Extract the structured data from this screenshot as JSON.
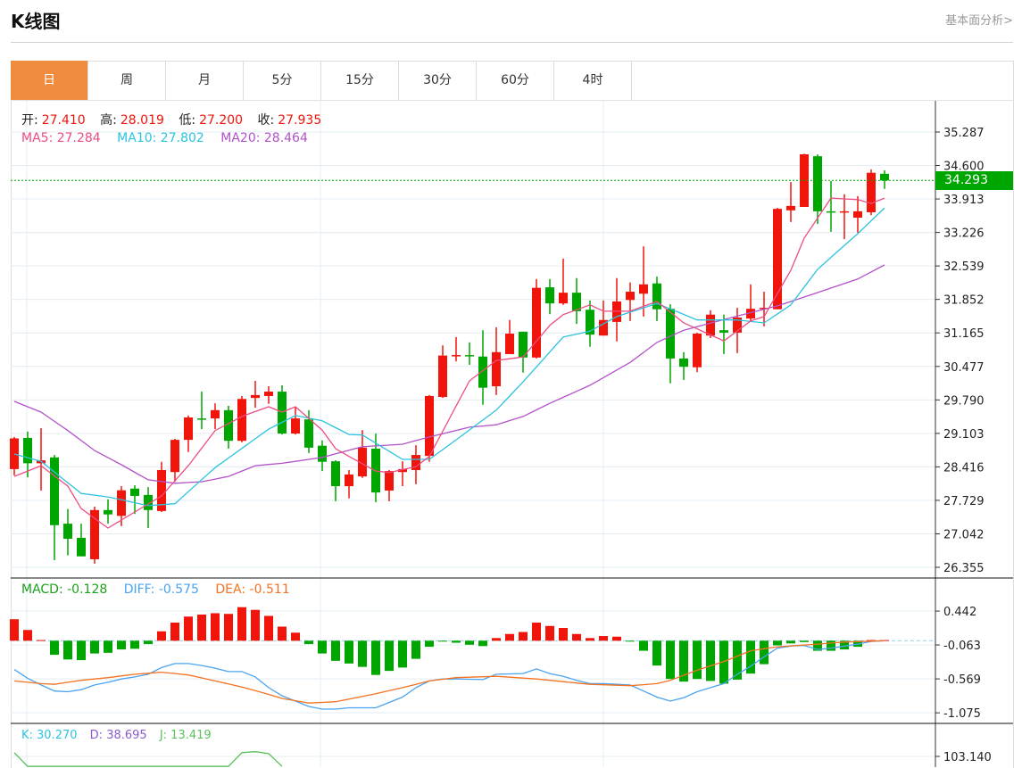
{
  "header": {
    "title": "K线图",
    "fundamental_link": "基本面分析>"
  },
  "tabs": [
    {
      "label": "日",
      "active": true
    },
    {
      "label": "周"
    },
    {
      "label": "月"
    },
    {
      "label": "5分"
    },
    {
      "label": "15分"
    },
    {
      "label": "30分"
    },
    {
      "label": "60分"
    },
    {
      "label": "4时"
    }
  ],
  "ohlc_legend": {
    "open_label": "开:",
    "open": "27.410",
    "high_label": "高:",
    "high": "28.019",
    "low_label": "低:",
    "low": "27.200",
    "close_label": "收:",
    "close": "27.935"
  },
  "ma_legend": {
    "ma5": "MA5: 27.284",
    "ma10": "MA10: 27.802",
    "ma20": "MA20: 28.464"
  },
  "macd_legend": {
    "macd": "MACD: -0.128",
    "diff": "DIFF: -0.575",
    "dea": "DEA: -0.511"
  },
  "kdj_legend": {
    "k": "K: 30.270",
    "d": "D: 38.695",
    "j": "J: 13.419"
  },
  "last_price": "34.293",
  "colors": {
    "up": "#f0140a",
    "down": "#00a600",
    "ma5": "#ec4d84",
    "ma10": "#2cc3df",
    "ma20": "#b252c9",
    "diff": "#4aa3f0",
    "dea": "#f27222",
    "k": "#2cc3df",
    "d": "#8a5cd0",
    "j": "#5cbf5c",
    "active_tab": "#f08c40"
  },
  "chart_data": [
    {
      "type": "candlestick",
      "title": "K线图",
      "y_ticks": [
        "35.287",
        "34.600",
        "33.913",
        "33.226",
        "32.539",
        "31.852",
        "31.165",
        "30.477",
        "29.790",
        "29.103",
        "28.416",
        "27.729",
        "27.042",
        "26.355"
      ],
      "ylim": [
        26.355,
        35.287
      ],
      "grid": true,
      "candles_ohlc_note": "each item = [open, close, high, low]",
      "candles": [
        [
          28.37,
          29.0,
          29.03,
          28.24
        ],
        [
          29.01,
          28.49,
          29.14,
          28.2
        ],
        [
          28.49,
          28.55,
          29.21,
          27.93
        ],
        [
          28.61,
          27.22,
          28.66,
          26.5
        ],
        [
          27.25,
          26.94,
          27.55,
          26.6
        ],
        [
          26.96,
          26.58,
          27.25,
          26.58
        ],
        [
          26.52,
          27.53,
          27.6,
          26.43
        ],
        [
          27.53,
          27.44,
          27.75,
          27.25
        ],
        [
          27.41,
          27.935,
          28.019,
          27.2
        ],
        [
          27.97,
          27.82,
          28.04,
          27.45
        ],
        [
          27.84,
          27.53,
          28.0,
          27.16
        ],
        [
          27.51,
          28.35,
          28.52,
          27.49
        ],
        [
          28.31,
          28.97,
          28.99,
          28.11
        ],
        [
          28.97,
          29.43,
          29.47,
          28.72
        ],
        [
          29.41,
          29.4,
          29.96,
          29.19
        ],
        [
          29.41,
          29.58,
          29.72,
          29.19
        ],
        [
          29.58,
          28.95,
          29.67,
          28.79
        ],
        [
          28.95,
          29.81,
          29.87,
          28.92
        ],
        [
          29.83,
          29.89,
          30.18,
          29.63
        ],
        [
          29.87,
          29.96,
          30.07,
          29.71
        ],
        [
          29.96,
          29.1,
          30.09,
          29.08
        ],
        [
          29.1,
          29.41,
          29.65,
          29.08
        ],
        [
          29.39,
          28.81,
          29.58,
          28.7
        ],
        [
          28.85,
          28.52,
          28.96,
          28.33
        ],
        [
          28.53,
          28.02,
          28.55,
          27.71
        ],
        [
          28.02,
          28.26,
          28.35,
          27.77
        ],
        [
          28.22,
          28.81,
          29.17,
          28.19
        ],
        [
          28.79,
          27.89,
          29.1,
          27.69
        ],
        [
          27.93,
          28.33,
          28.35,
          27.71
        ],
        [
          28.31,
          28.37,
          28.53,
          28.02
        ],
        [
          28.35,
          28.66,
          28.86,
          28.06
        ],
        [
          28.64,
          29.87,
          29.89,
          28.52
        ],
        [
          29.85,
          30.7,
          30.91,
          29.83
        ],
        [
          30.7,
          30.71,
          31.08,
          30.58
        ],
        [
          30.71,
          30.7,
          30.97,
          30.51
        ],
        [
          30.68,
          30.04,
          31.22,
          29.69
        ],
        [
          30.07,
          30.77,
          31.28,
          29.89
        ],
        [
          30.73,
          31.15,
          31.43,
          30.73
        ],
        [
          31.19,
          30.66,
          31.19,
          30.35
        ],
        [
          30.66,
          32.09,
          32.27,
          30.64
        ],
        [
          32.1,
          31.77,
          32.27,
          31.55
        ],
        [
          31.77,
          31.99,
          32.69,
          31.74
        ],
        [
          31.99,
          31.61,
          32.29,
          31.35
        ],
        [
          31.64,
          31.13,
          31.83,
          30.88
        ],
        [
          31.11,
          31.43,
          31.83,
          31.11
        ],
        [
          31.39,
          31.81,
          32.29,
          30.99
        ],
        [
          31.84,
          32.01,
          32.2,
          31.41
        ],
        [
          31.97,
          32.16,
          32.94,
          31.5
        ],
        [
          32.18,
          31.65,
          32.32,
          31.41
        ],
        [
          31.66,
          30.64,
          31.75,
          30.13
        ],
        [
          30.64,
          30.47,
          30.77,
          30.2
        ],
        [
          30.46,
          31.15,
          31.17,
          30.36
        ],
        [
          31.11,
          31.54,
          31.63,
          31.06
        ],
        [
          31.22,
          31.17,
          31.54,
          30.73
        ],
        [
          31.17,
          31.48,
          31.68,
          30.75
        ],
        [
          31.46,
          31.66,
          32.16,
          31.41
        ],
        [
          31.66,
          31.68,
          32.01,
          31.3
        ],
        [
          31.65,
          33.71,
          33.73,
          31.65
        ],
        [
          33.68,
          33.77,
          34.26,
          33.44
        ],
        [
          33.75,
          34.83,
          34.84,
          33.75
        ],
        [
          34.79,
          33.66,
          34.83,
          33.4
        ],
        [
          33.66,
          33.64,
          34.28,
          33.24
        ],
        [
          33.64,
          33.66,
          34.01,
          33.09
        ],
        [
          33.53,
          33.66,
          33.97,
          33.22
        ],
        [
          33.64,
          34.45,
          34.52,
          33.58
        ],
        [
          34.43,
          34.293,
          34.5,
          34.12
        ]
      ],
      "ma5": [
        [
          0,
          28.22
        ],
        [
          2,
          28.44
        ],
        [
          4,
          28.02
        ],
        [
          5,
          27.56
        ],
        [
          7,
          27.16
        ],
        [
          9,
          27.49
        ],
        [
          11,
          27.82
        ],
        [
          13,
          28.44
        ],
        [
          15,
          29.16
        ],
        [
          17,
          29.45
        ],
        [
          19,
          29.65
        ],
        [
          20,
          29.54
        ],
        [
          21,
          29.65
        ],
        [
          23,
          29.17
        ],
        [
          24,
          28.79
        ],
        [
          25,
          28.63
        ],
        [
          27,
          28.33
        ],
        [
          28,
          28.3
        ],
        [
          30,
          28.42
        ],
        [
          31,
          28.63
        ],
        [
          34,
          30.18
        ],
        [
          36,
          30.6
        ],
        [
          38,
          30.67
        ],
        [
          40,
          31.32
        ],
        [
          41,
          31.54
        ],
        [
          43,
          31.74
        ],
        [
          44,
          31.61
        ],
        [
          46,
          31.61
        ],
        [
          48,
          31.81
        ],
        [
          50,
          31.37
        ],
        [
          53,
          31.0
        ],
        [
          55,
          31.41
        ],
        [
          56,
          31.5
        ],
        [
          58,
          32.45
        ],
        [
          59,
          33.11
        ],
        [
          61,
          33.93
        ],
        [
          63,
          33.9
        ],
        [
          64,
          33.82
        ],
        [
          65,
          33.93
        ]
      ],
      "ma10": [
        [
          0,
          28.68
        ],
        [
          2,
          28.53
        ],
        [
          5,
          27.87
        ],
        [
          7,
          27.8
        ],
        [
          10,
          27.62
        ],
        [
          12,
          27.66
        ],
        [
          15,
          28.4
        ],
        [
          19,
          29.19
        ],
        [
          21,
          29.47
        ],
        [
          23,
          29.36
        ],
        [
          25,
          29.08
        ],
        [
          26,
          29.07
        ],
        [
          29,
          28.57
        ],
        [
          31,
          28.57
        ],
        [
          33,
          28.97
        ],
        [
          36,
          29.58
        ],
        [
          38,
          30.16
        ],
        [
          41,
          31.08
        ],
        [
          43,
          31.2
        ],
        [
          45,
          31.5
        ],
        [
          48,
          31.77
        ],
        [
          51,
          31.43
        ],
        [
          54,
          31.43
        ],
        [
          56,
          31.37
        ],
        [
          58,
          31.74
        ],
        [
          60,
          32.47
        ],
        [
          62,
          32.96
        ],
        [
          63,
          33.2
        ],
        [
          65,
          33.73
        ]
      ],
      "ma20": [
        [
          0,
          29.76
        ],
        [
          2,
          29.54
        ],
        [
          4,
          29.16
        ],
        [
          6,
          28.75
        ],
        [
          8,
          28.46
        ],
        [
          10,
          28.15
        ],
        [
          12,
          28.08
        ],
        [
          14,
          28.11
        ],
        [
          16,
          28.22
        ],
        [
          18,
          28.44
        ],
        [
          20,
          28.49
        ],
        [
          22,
          28.57
        ],
        [
          23,
          28.61
        ],
        [
          26,
          28.83
        ],
        [
          29,
          28.88
        ],
        [
          31,
          29.03
        ],
        [
          34,
          29.23
        ],
        [
          36,
          29.28
        ],
        [
          38,
          29.45
        ],
        [
          40,
          29.72
        ],
        [
          43,
          30.09
        ],
        [
          46,
          30.56
        ],
        [
          48,
          30.97
        ],
        [
          50,
          31.22
        ],
        [
          53,
          31.44
        ],
        [
          57,
          31.72
        ],
        [
          59,
          31.9
        ],
        [
          63,
          32.27
        ],
        [
          65,
          32.56
        ]
      ]
    },
    {
      "type": "bar+line",
      "title": "MACD",
      "y_ticks": [
        "0.442",
        "-0.063",
        "-0.569",
        "-1.075"
      ],
      "macd": [
        0.32,
        0.16,
        0.01,
        -0.21,
        -0.28,
        -0.29,
        -0.19,
        -0.18,
        -0.13,
        -0.12,
        -0.05,
        0.14,
        0.27,
        0.36,
        0.39,
        0.41,
        0.4,
        0.5,
        0.46,
        0.37,
        0.21,
        0.12,
        -0.05,
        -0.19,
        -0.3,
        -0.34,
        -0.39,
        -0.51,
        -0.45,
        -0.4,
        -0.27,
        -0.09,
        -0.01,
        -0.03,
        -0.06,
        -0.08,
        0.04,
        0.1,
        0.13,
        0.27,
        0.22,
        0.19,
        0.1,
        0.04,
        0.07,
        0.06,
        -0.01,
        -0.15,
        -0.37,
        -0.57,
        -0.61,
        -0.57,
        -0.6,
        -0.64,
        -0.58,
        -0.49,
        -0.35,
        -0.07,
        -0.04,
        -0.02,
        -0.15,
        -0.15,
        -0.13,
        -0.09,
        0.01,
        0.01
      ],
      "diff": [
        [
          0,
          -0.43
        ],
        [
          1,
          -0.56
        ],
        [
          2,
          -0.66
        ],
        [
          3,
          -0.75
        ],
        [
          4,
          -0.76
        ],
        [
          5,
          -0.73
        ],
        [
          6,
          -0.66
        ],
        [
          7,
          -0.62
        ],
        [
          8,
          -0.57
        ],
        [
          9,
          -0.54
        ],
        [
          10,
          -0.5
        ],
        [
          11,
          -0.4
        ],
        [
          12,
          -0.34
        ],
        [
          13,
          -0.34
        ],
        [
          14,
          -0.37
        ],
        [
          15,
          -0.41
        ],
        [
          16,
          -0.46
        ],
        [
          17,
          -0.46
        ],
        [
          18,
          -0.54
        ],
        [
          19,
          -0.7
        ],
        [
          20,
          -0.82
        ],
        [
          21,
          -0.9
        ],
        [
          22,
          -0.98
        ],
        [
          23,
          -1.02
        ],
        [
          24,
          -1.02
        ],
        [
          25,
          -1.0
        ],
        [
          27,
          -1.0
        ],
        [
          28,
          -0.92
        ],
        [
          29,
          -0.84
        ],
        [
          30,
          -0.7
        ],
        [
          31,
          -0.6
        ],
        [
          32,
          -0.57
        ],
        [
          33,
          -0.57
        ],
        [
          35,
          -0.58
        ],
        [
          36,
          -0.5
        ],
        [
          38,
          -0.49
        ],
        [
          39,
          -0.42
        ],
        [
          40,
          -0.49
        ],
        [
          41,
          -0.53
        ],
        [
          42,
          -0.59
        ],
        [
          43,
          -0.64
        ],
        [
          44,
          -0.64
        ],
        [
          45,
          -0.65
        ],
        [
          46,
          -0.66
        ],
        [
          47,
          -0.75
        ],
        [
          48,
          -0.84
        ],
        [
          49,
          -0.9
        ],
        [
          50,
          -0.85
        ],
        [
          51,
          -0.76
        ],
        [
          52,
          -0.7
        ],
        [
          53,
          -0.64
        ],
        [
          54,
          -0.5
        ],
        [
          55,
          -0.38
        ],
        [
          56,
          -0.24
        ],
        [
          57,
          -0.11
        ],
        [
          58,
          -0.08
        ],
        [
          59,
          -0.07
        ],
        [
          60,
          -0.13
        ],
        [
          61,
          -0.11
        ],
        [
          62,
          -0.08
        ],
        [
          63,
          -0.05
        ],
        [
          64,
          -0.01
        ],
        [
          65,
          0.0
        ]
      ],
      "dea": [
        [
          0,
          -0.6
        ],
        [
          2,
          -0.64
        ],
        [
          3,
          -0.65
        ],
        [
          5,
          -0.59
        ],
        [
          7,
          -0.55
        ],
        [
          9,
          -0.5
        ],
        [
          11,
          -0.47
        ],
        [
          13,
          -0.51
        ],
        [
          15,
          -0.6
        ],
        [
          17,
          -0.69
        ],
        [
          19,
          -0.8
        ],
        [
          20,
          -0.86
        ],
        [
          22,
          -0.93
        ],
        [
          24,
          -0.91
        ],
        [
          27,
          -0.79
        ],
        [
          29,
          -0.7
        ],
        [
          31,
          -0.6
        ],
        [
          33,
          -0.55
        ],
        [
          36,
          -0.53
        ],
        [
          39,
          -0.57
        ],
        [
          41,
          -0.61
        ],
        [
          43,
          -0.65
        ],
        [
          46,
          -0.67
        ],
        [
          48,
          -0.64
        ],
        [
          49,
          -0.59
        ],
        [
          51,
          -0.44
        ],
        [
          53,
          -0.31
        ],
        [
          55,
          -0.15
        ],
        [
          57,
          -0.09
        ],
        [
          60,
          -0.05
        ],
        [
          62,
          -0.02
        ],
        [
          65,
          0.0
        ]
      ]
    },
    {
      "type": "line",
      "title": "KDJ",
      "y_ticks": [
        "103.140"
      ],
      "j": [
        [
          0,
          107
        ],
        [
          1,
          93
        ],
        [
          16,
          93
        ],
        [
          17,
          107
        ],
        [
          18,
          108
        ],
        [
          19,
          106
        ],
        [
          20,
          93
        ]
      ]
    }
  ]
}
